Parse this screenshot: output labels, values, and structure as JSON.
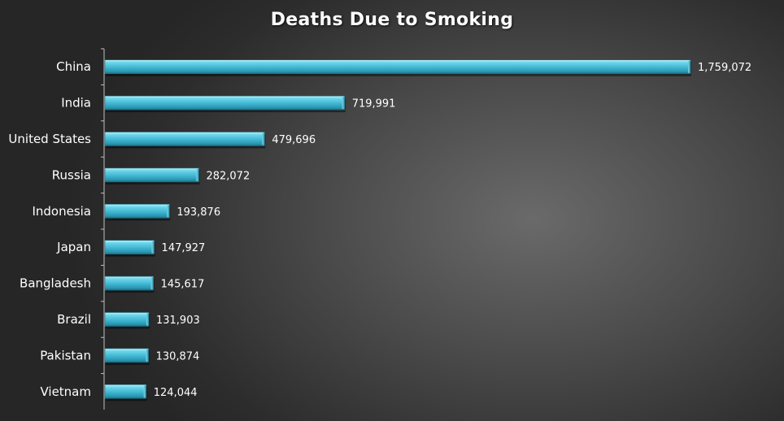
{
  "chart_data": {
    "type": "bar",
    "orientation": "horizontal",
    "title": "Deaths Due to Smoking",
    "categories": [
      "China",
      "India",
      "United States",
      "Russia",
      "Indonesia",
      "Japan",
      "Bangladesh",
      "Brazil",
      "Pakistan",
      "Vietnam"
    ],
    "values": [
      1759072,
      719991,
      479696,
      282072,
      193876,
      147927,
      145617,
      131903,
      130874,
      124044
    ],
    "value_labels": [
      "1,759,072",
      "719,991",
      "479,696",
      "282,072",
      "193,876",
      "147,927",
      "145,617",
      "131,903",
      "130,874",
      "124,044"
    ],
    "xlabel": "",
    "ylabel": "",
    "grid": false,
    "legend": "none",
    "colors": {
      "bar": "#4fc3dd",
      "bar_dark": "#1a7f98",
      "bar_light": "#a8ecf7",
      "text": "#ffffff",
      "axis": "#bfbfbf"
    }
  }
}
